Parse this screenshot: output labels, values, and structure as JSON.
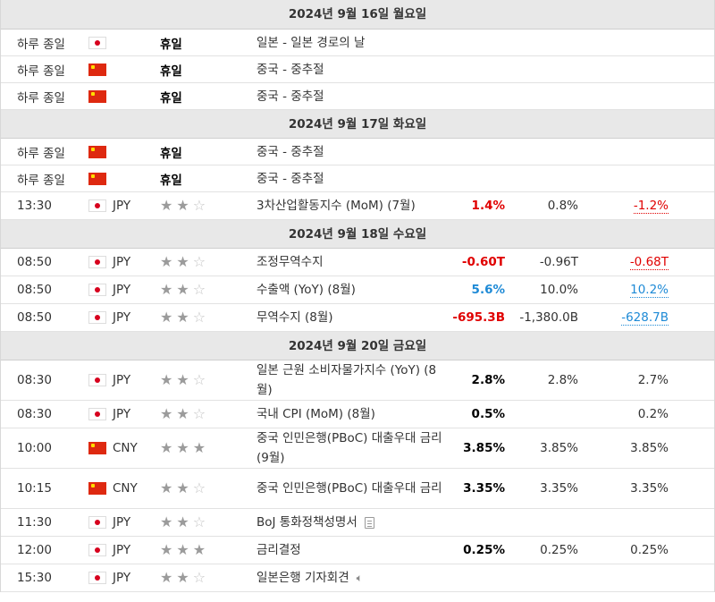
{
  "days": [
    {
      "label": "2024년 9월 16일 월요일",
      "events": [
        {
          "time": "하루 종일",
          "flag": "jp",
          "holiday": "휴일",
          "event": "일본 - 일본 경로의 날"
        },
        {
          "time": "하루 종일",
          "flag": "cn",
          "holiday": "휴일",
          "event": "중국 - 중추절"
        },
        {
          "time": "하루 종일",
          "flag": "cn",
          "holiday": "휴일",
          "event": "중국 - 중추절"
        }
      ]
    },
    {
      "label": "2024년 9월 17일 화요일",
      "events": [
        {
          "time": "하루 종일",
          "flag": "cn",
          "holiday": "휴일",
          "event": "중국 - 중추절"
        },
        {
          "time": "하루 종일",
          "flag": "cn",
          "holiday": "휴일",
          "event": "중국 - 중추절"
        },
        {
          "time": "13:30",
          "flag": "jp",
          "currency": "JPY",
          "importance": 2,
          "event": "3차산업활동지수 (MoM) (7월)",
          "actual": "1.4%",
          "actual_color": "red",
          "forecast": "0.8%",
          "previous": "-1.2%",
          "previous_style": "ulred"
        }
      ]
    },
    {
      "label": "2024년 9월 18일 수요일",
      "events": [
        {
          "time": "08:50",
          "flag": "jp",
          "currency": "JPY",
          "importance": 2,
          "event": "조정무역수지",
          "actual": "-0.60T",
          "actual_color": "red",
          "forecast": "-0.96T",
          "previous": "-0.68T",
          "previous_style": "ulred"
        },
        {
          "time": "08:50",
          "flag": "jp",
          "currency": "JPY",
          "importance": 2,
          "event": "수출액 (YoY) (8월)",
          "actual": "5.6%",
          "actual_color": "blue",
          "forecast": "10.0%",
          "previous": "10.2%",
          "previous_style": "ulblue"
        },
        {
          "time": "08:50",
          "flag": "jp",
          "currency": "JPY",
          "importance": 2,
          "event": "무역수지 (8월)",
          "actual": "-695.3B",
          "actual_color": "red",
          "forecast": "-1,380.0B",
          "previous": "-628.7B",
          "previous_style": "ulblue"
        }
      ]
    },
    {
      "label": "2024년 9월 20일 금요일",
      "events": [
        {
          "time": "08:30",
          "flag": "jp",
          "currency": "JPY",
          "importance": 2,
          "event": "일본 근원 소비자물가지수 (YoY) (8월)",
          "actual": "2.8%",
          "forecast": "2.8%",
          "previous": "2.7%",
          "tall": true
        },
        {
          "time": "08:30",
          "flag": "jp",
          "currency": "JPY",
          "importance": 2,
          "event": "국내 CPI (MoM) (8월)",
          "actual": "0.5%",
          "forecast": "",
          "previous": "0.2%"
        },
        {
          "time": "10:00",
          "flag": "cn",
          "currency": "CNY",
          "importance": 3,
          "event": "중국 인민은행(PBoC) 대출우대 금리 (9월)",
          "actual": "3.85%",
          "forecast": "3.85%",
          "previous": "3.85%",
          "tall": true
        },
        {
          "time": "10:15",
          "flag": "cn",
          "currency": "CNY",
          "importance": 2,
          "event": "중국 인민은행(PBoC) 대출우대 금리",
          "actual": "3.35%",
          "forecast": "3.35%",
          "previous": "3.35%",
          "tall": true
        },
        {
          "time": "11:30",
          "flag": "jp",
          "currency": "JPY",
          "importance": 2,
          "event": "BoJ 통화정책성명서",
          "icon": "document-icon"
        },
        {
          "time": "12:00",
          "flag": "jp",
          "currency": "JPY",
          "importance": 3,
          "event": "금리결정",
          "actual": "0.25%",
          "forecast": "0.25%",
          "previous": "0.25%"
        },
        {
          "time": "15:30",
          "flag": "jp",
          "currency": "JPY",
          "importance": 2,
          "event": "일본은행 기자회견",
          "icon": "speaker-icon"
        }
      ]
    }
  ]
}
